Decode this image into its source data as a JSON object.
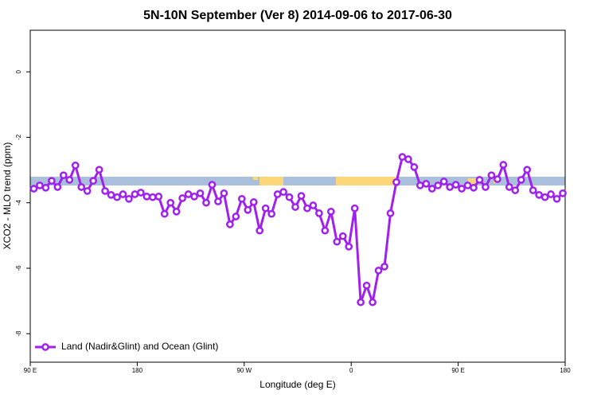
{
  "chart_data": {
    "type": "line",
    "title": "5N-10N September (Ver 8)   2014-09-06 to 2017-06-30",
    "xlabel": "Longitude (deg E)",
    "ylabel": "XCO2 - MLO trend (ppm)",
    "xlim": [
      90,
      540
    ],
    "ylim": [
      -8.87,
      1.27
    ],
    "xticks": [
      {
        "value": 90,
        "label": "90 E"
      },
      180,
      {
        "value": 270,
        "label": "90 W"
      },
      {
        "value": 360,
        "label": "0"
      },
      {
        "value": 450,
        "label": "90 E"
      },
      {
        "value": 540,
        "label": "180"
      }
    ],
    "yticks": [
      0,
      -2,
      -4,
      -6,
      -8
    ],
    "legend": "bottomleft",
    "x": [
      93,
      98,
      103,
      108,
      113,
      118,
      123,
      128,
      133,
      138,
      143,
      148,
      153,
      158,
      163,
      168,
      173,
      178,
      183,
      188,
      193,
      198,
      203,
      208,
      213,
      218,
      223,
      228,
      233,
      238,
      243,
      248,
      253,
      258,
      263,
      268,
      273,
      278,
      283,
      288,
      293,
      298,
      303,
      308,
      313,
      318,
      323,
      328,
      333,
      338,
      343,
      348,
      353,
      358,
      363,
      368,
      373,
      378,
      383,
      388,
      393,
      398,
      403,
      408,
      413,
      418,
      423,
      428,
      433,
      438,
      443,
      448,
      453,
      458,
      463,
      468,
      473,
      478,
      483,
      488,
      493,
      498,
      503,
      508,
      513,
      518,
      523,
      528,
      533,
      538
    ],
    "series": [
      {
        "name": "Land (Nadir&Glint) and Ocean (Glint)",
        "color": "#a020f0",
        "values": [
          -3.57,
          -3.47,
          -3.54,
          -3.33,
          -3.52,
          -3.16,
          -3.3,
          -2.86,
          -3.52,
          -3.64,
          -3.33,
          -2.99,
          -3.64,
          -3.76,
          -3.83,
          -3.74,
          -3.88,
          -3.74,
          -3.69,
          -3.81,
          -3.83,
          -3.81,
          -4.34,
          -4.0,
          -4.27,
          -3.86,
          -3.74,
          -3.81,
          -3.71,
          -4.0,
          -3.45,
          -3.96,
          -3.71,
          -4.66,
          -4.42,
          -3.88,
          -4.22,
          -3.98,
          -4.85,
          -4.17,
          -4.34,
          -3.74,
          -3.67,
          -3.83,
          -4.13,
          -3.79,
          -4.17,
          -4.08,
          -4.32,
          -4.85,
          -4.27,
          -5.19,
          -5.02,
          -5.34,
          -4.17,
          -7.04,
          -6.53,
          -7.04,
          -6.07,
          -5.95,
          -4.32,
          -3.37,
          -2.6,
          -2.67,
          -2.91,
          -3.47,
          -3.42,
          -3.57,
          -3.47,
          -3.35,
          -3.52,
          -3.45,
          -3.57,
          -3.47,
          -3.54,
          -3.3,
          -3.52,
          -3.16,
          -3.28,
          -2.84,
          -3.52,
          -3.62,
          -3.3,
          -2.99,
          -3.62,
          -3.76,
          -3.83,
          -3.74,
          -3.88,
          -3.71
        ]
      }
    ]
  }
}
